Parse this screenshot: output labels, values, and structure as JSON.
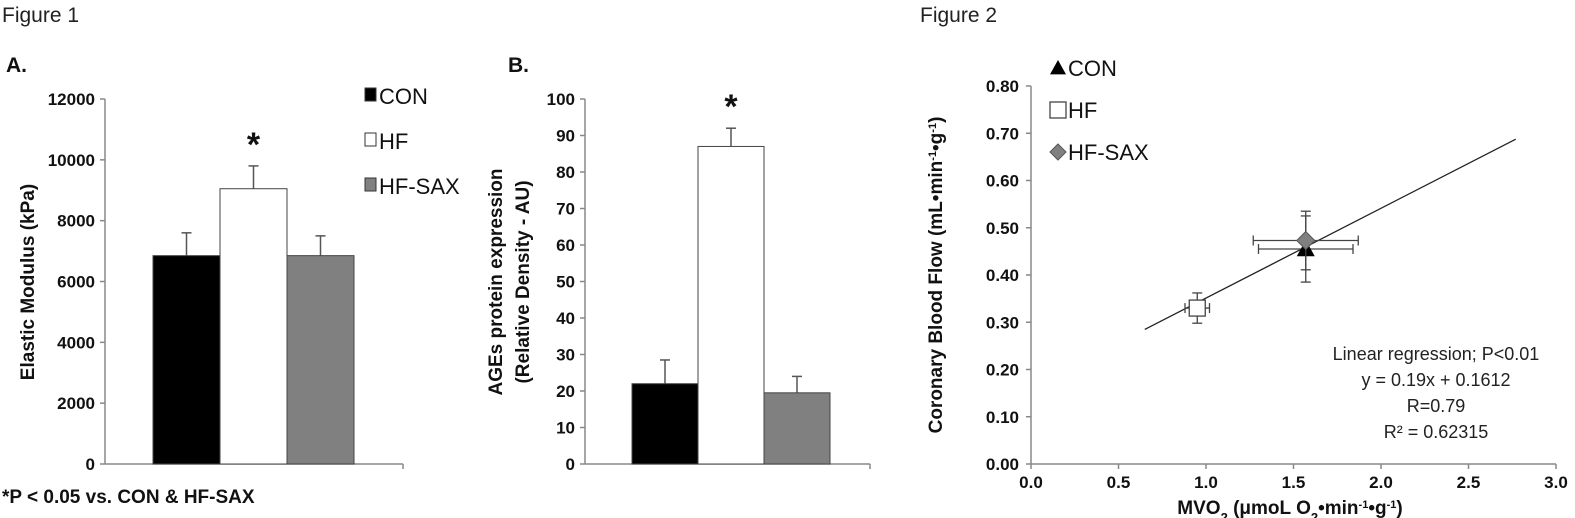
{
  "figure1_title": "Figure 1",
  "figure2_title": "Figure 2",
  "footnote": "*P < 0.05 vs. CON & HF-SAX",
  "colors": {
    "CON": "#000000",
    "HF": "#ffffff",
    "HF-SAX": "#808080",
    "axis": "#888888"
  },
  "chart_data": [
    {
      "type": "bar",
      "panel": "A.",
      "title": "",
      "ylabel": "Elastic Modulus (kPa)",
      "xlabel": "",
      "ylim": [
        0,
        12000
      ],
      "yticks": [
        0,
        2000,
        4000,
        6000,
        8000,
        10000,
        12000
      ],
      "categories": [
        "CON",
        "HF",
        "HF-SAX"
      ],
      "values": [
        6850,
        9050,
        6850
      ],
      "errors": [
        750,
        750,
        650
      ],
      "significance": [
        "",
        "*",
        ""
      ],
      "legend": [
        "CON",
        "HF",
        "HF-SAX"
      ],
      "legend_position": "top-right"
    },
    {
      "type": "bar",
      "panel": "B.",
      "title": "",
      "ylabel": [
        "AGEs protein expression",
        "(Relative Density - AU)"
      ],
      "xlabel": "",
      "ylim": [
        0,
        100
      ],
      "yticks": [
        0,
        10,
        20,
        30,
        40,
        50,
        60,
        70,
        80,
        90,
        100
      ],
      "categories": [
        "CON",
        "HF",
        "HF-SAX"
      ],
      "values": [
        22,
        87,
        19.5
      ],
      "errors": [
        6.5,
        5,
        4.5
      ],
      "significance": [
        "",
        "*",
        ""
      ]
    },
    {
      "type": "scatter",
      "title": "",
      "xlabel": "MVO₂ (μmoL O₂•min⁻¹•g⁻¹)",
      "xlabel_parts": [
        "MVO",
        "2",
        " (μmoL O",
        "2",
        "•min",
        "-1",
        "•g",
        "-1",
        ")"
      ],
      "ylabel": "Coronary Blood Flow (mL•min⁻¹•g⁻¹)",
      "ylabel_parts": [
        "Coronary Blood Flow (mL•min",
        "-1",
        "•g",
        "-1",
        ")"
      ],
      "xlim": [
        0,
        3.0
      ],
      "ylim": [
        0,
        0.8
      ],
      "xticks": [
        "0.0",
        "0.5",
        "1.0",
        "1.5",
        "2.0",
        "2.5",
        "3.0"
      ],
      "yticks": [
        "0.00",
        "0.10",
        "0.20",
        "0.30",
        "0.40",
        "0.50",
        "0.60",
        "0.70",
        "0.80"
      ],
      "series": [
        {
          "name": "CON",
          "marker": "triangle",
          "x": 1.57,
          "y": 0.455,
          "xerr": 0.27,
          "yerr": 0.07
        },
        {
          "name": "HF",
          "marker": "square",
          "x": 0.95,
          "y": 0.33,
          "xerr": 0.07,
          "yerr": 0.032
        },
        {
          "name": "HF-SAX",
          "marker": "diamond",
          "x": 1.57,
          "y": 0.473,
          "xerr": 0.3,
          "yerr": 0.062
        }
      ],
      "trendline": {
        "slope": 0.19,
        "intercept": 0.1612,
        "x_range": [
          0.65,
          2.77
        ]
      },
      "annotations": [
        "Linear regression; P<0.01",
        "y = 0.19x + 0.1612",
        "R=0.79",
        "R² = 0.62315"
      ],
      "legend_position": "top-left"
    }
  ]
}
